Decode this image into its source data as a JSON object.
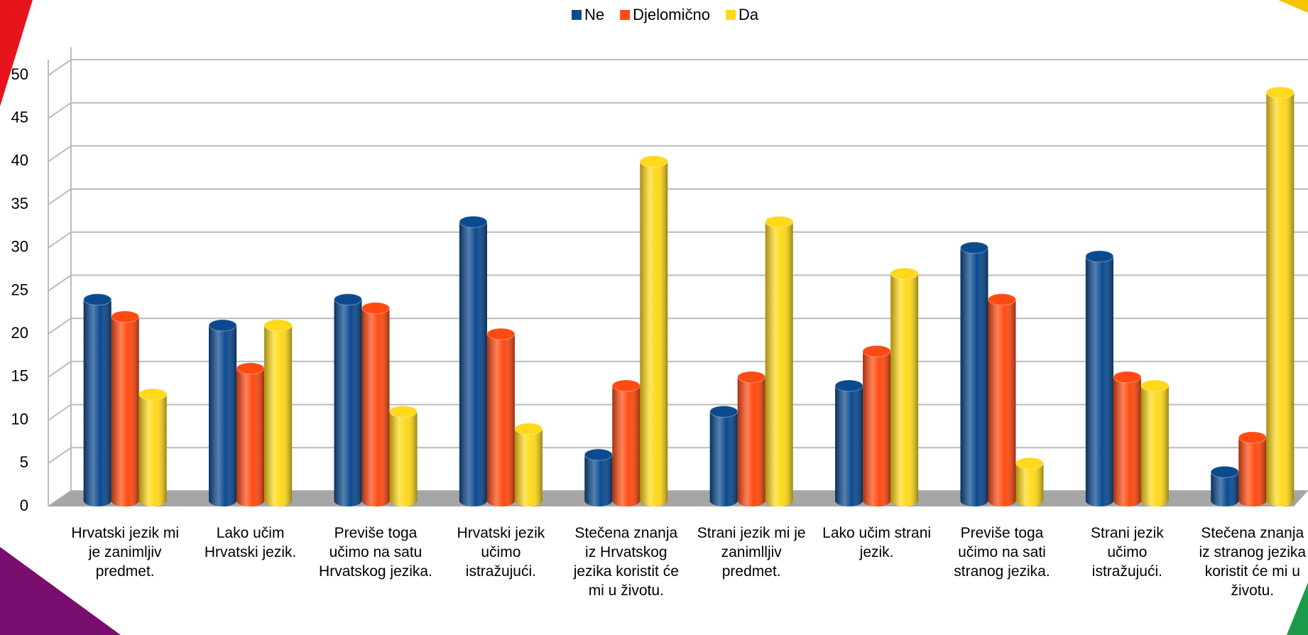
{
  "chart_data": {
    "type": "bar",
    "categories": [
      "Hrvatski jezik mi je zanimljiv predmet.",
      "Lako učim Hrvatski jezik.",
      "Previše toga učimo na satu Hrvatskog jezika.",
      "Hrvatski jezik učimo istražujući.",
      "Stečena znanja iz Hrvatskog jezika koristit će mi u životu.",
      "Strani jezik mi je zanimlljiv predmet.",
      "Lako učim strani jezik.",
      "Previše toga učimo na sati stranog jezika.",
      "Strani jezik učimo istražujući.",
      "Stečena znanja iz stranog jezika koristit će mi u životu."
    ],
    "series": [
      {
        "name": "Ne",
        "color": "#0b4a8f",
        "values": [
          24,
          21,
          24,
          33,
          6,
          11,
          14,
          30,
          29,
          4
        ]
      },
      {
        "name": "Djelomično",
        "color": "#ff4a12",
        "values": [
          22,
          16,
          23,
          20,
          14,
          15,
          18,
          24,
          15,
          8
        ]
      },
      {
        "name": "Da",
        "color": "#ffd91a",
        "values": [
          13,
          21,
          11,
          9,
          40,
          33,
          27,
          5,
          14,
          48
        ]
      }
    ],
    "ylim": [
      0,
      50
    ],
    "yticks": [
      0,
      5,
      10,
      15,
      20,
      25,
      30,
      35,
      40,
      45,
      50
    ],
    "grid": true,
    "legend": "top"
  }
}
